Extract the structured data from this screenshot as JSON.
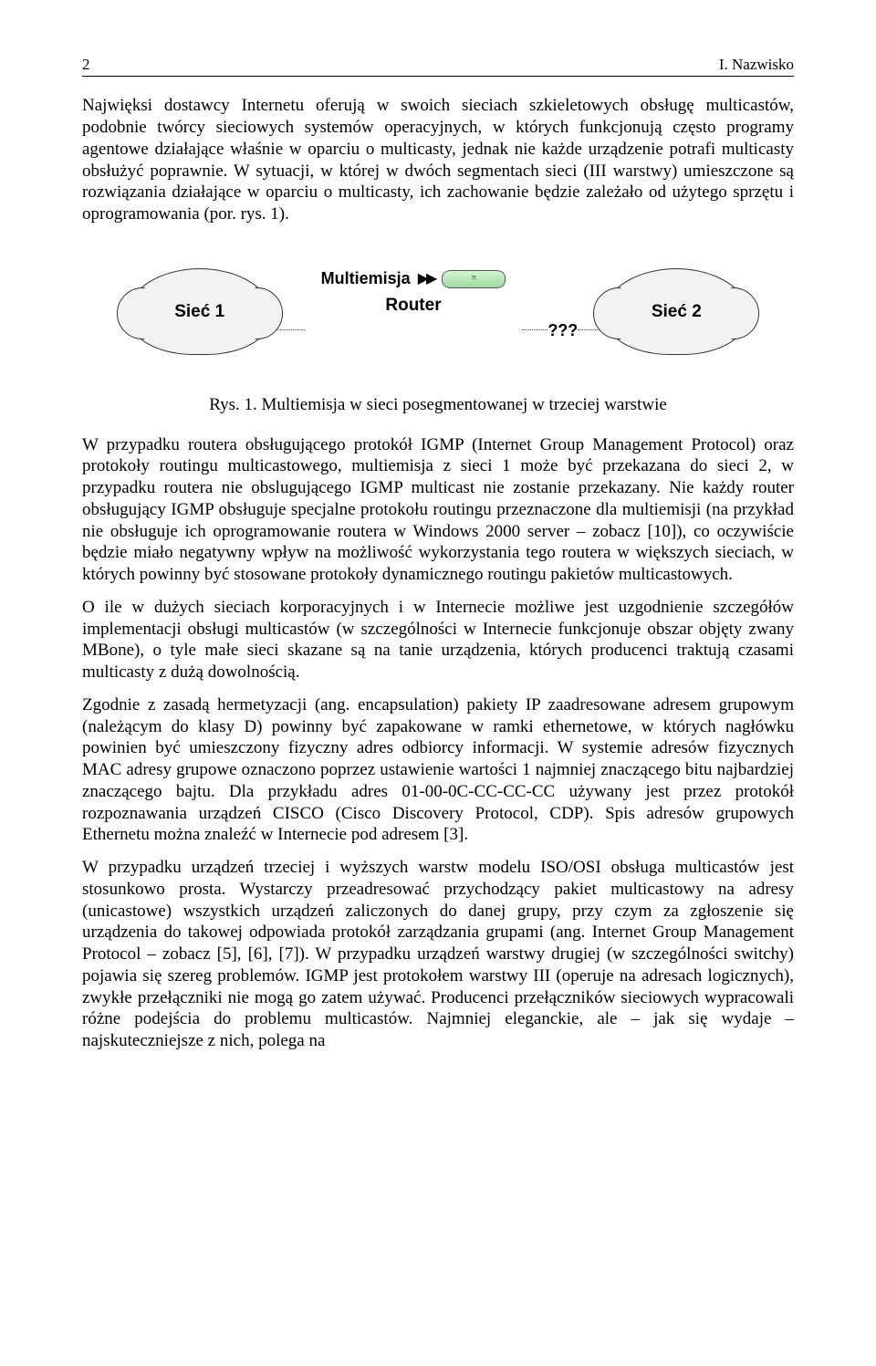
{
  "header": {
    "page_number": "2",
    "running_head": "I. Nazwisko"
  },
  "paragraphs": {
    "p1": "Najwięksi dostawcy Internetu oferują w swoich sieciach szkieletowych obsługę multicastów, podobnie twórcy sieciowych systemów operacyjnych, w których funkcjonują często programy agentowe działające właśnie w oparciu o multicasty, jednak nie każde urządzenie potrafi multicasty obsłużyć poprawnie. W sytuacji, w której w dwóch segmentach sieci (III warstwy) umieszczone są rozwiązania działające w oparciu o multicasty, ich zachowanie będzie zależało od użytego sprzętu i oprogramowania (por. rys. 1).",
    "p2": "W przypadku routera obsługującego protokół IGMP (Internet Group Management Protocol) oraz protokoły routingu multicastowego, multiemisja z sieci 1 może być przekazana do sieci 2, w przypadku routera nie obslugującego IGMP multicast nie zostanie przekazany. Nie każdy router obsługujący IGMP obsługuje specjalne protokołu routingu przeznaczone dla multiemisji (na przykład nie obsługuje ich oprogramowanie routera w Windows 2000 server – zobacz [10]), co oczywiście będzie miało negatywny wpływ na możliwość wykorzystania tego routera w większych sieciach, w których powinny być stosowane protokoły dynamicznego routingu pakietów multicastowych.",
    "p3": "O ile w dużych sieciach korporacyjnych i w Internecie możliwe jest uzgodnienie szczegółów implementacji obsługi multicastów (w szczególności w Internecie funkcjonuje obszar objęty zwany MBone), o tyle małe sieci skazane są na tanie urządzenia, których producenci traktują czasami multicasty z dużą dowolnością.",
    "p4": "Zgodnie z zasadą hermetyzacji (ang. encapsulation) pakiety IP zaadresowane adresem grupowym (należącym do klasy D) powinny być zapakowane w ramki ethernetowe, w których nagłówku powinien być umieszczony fizyczny adres odbiorcy informacji. W systemie adresów fizycznych MAC adresy grupowe oznaczono poprzez ustawienie wartości 1 najmniej znaczącego bitu najbardziej znaczącego bajtu. Dla przykładu adres 01-00-0C-CC-CC-CC używany jest przez protokół rozpoznawania urządzeń CISCO (Cisco Discovery Protocol, CDP). Spis adresów grupowych Ethernetu można znaleźć w Internecie pod adresem [3].",
    "p5": "W przypadku urządzeń trzeciej i wyższych warstw modelu ISO/OSI obsługa multicastów jest stosunkowo prosta. Wystarczy przeadresować przychodzący pakiet multicastowy na adresy (unicastowe) wszystkich urządzeń zaliczonych do danej grupy, przy czym za zgłoszenie się urządzenia do takowej odpowiada protokół zarządzania grupami (ang. Internet Group Management Protocol – zobacz [5], [6], [7]). W przypadku urządzeń warstwy drugiej (w szczególności switchy) pojawia się szereg problemów. IGMP jest protokołem warstwy III (operuje na adresach logicznych), zwykłe przełączniki nie mogą go zatem używać. Producenci przełączników sieciowych wypracowali różne podejścia do problemu multicastów. Najmniej eleganckie, ale – jak się wydaje – najskuteczniejsze z nich, polega na"
  },
  "figure": {
    "type": "network-diagram",
    "siec1_label": "Sieć 1",
    "siec2_label": "Sieć 2",
    "multiemisja_label": "Multiemisja",
    "router_label": "Router",
    "question_marks": "???",
    "arrow_glyph": "▶▶",
    "cloud_fill": "#f2f2f2",
    "cloud_stroke": "#333333",
    "router_gradient_top": "#d6f5d6",
    "router_gradient_bottom": "#9fd89f",
    "line_style": "dotted",
    "line_color": "#555555",
    "font_family_labels": "Arial",
    "label_fontweight": "bold",
    "caption": "Rys. 1. Multiemisja w sieci posegmentowanej w trzeciej warstwie"
  }
}
